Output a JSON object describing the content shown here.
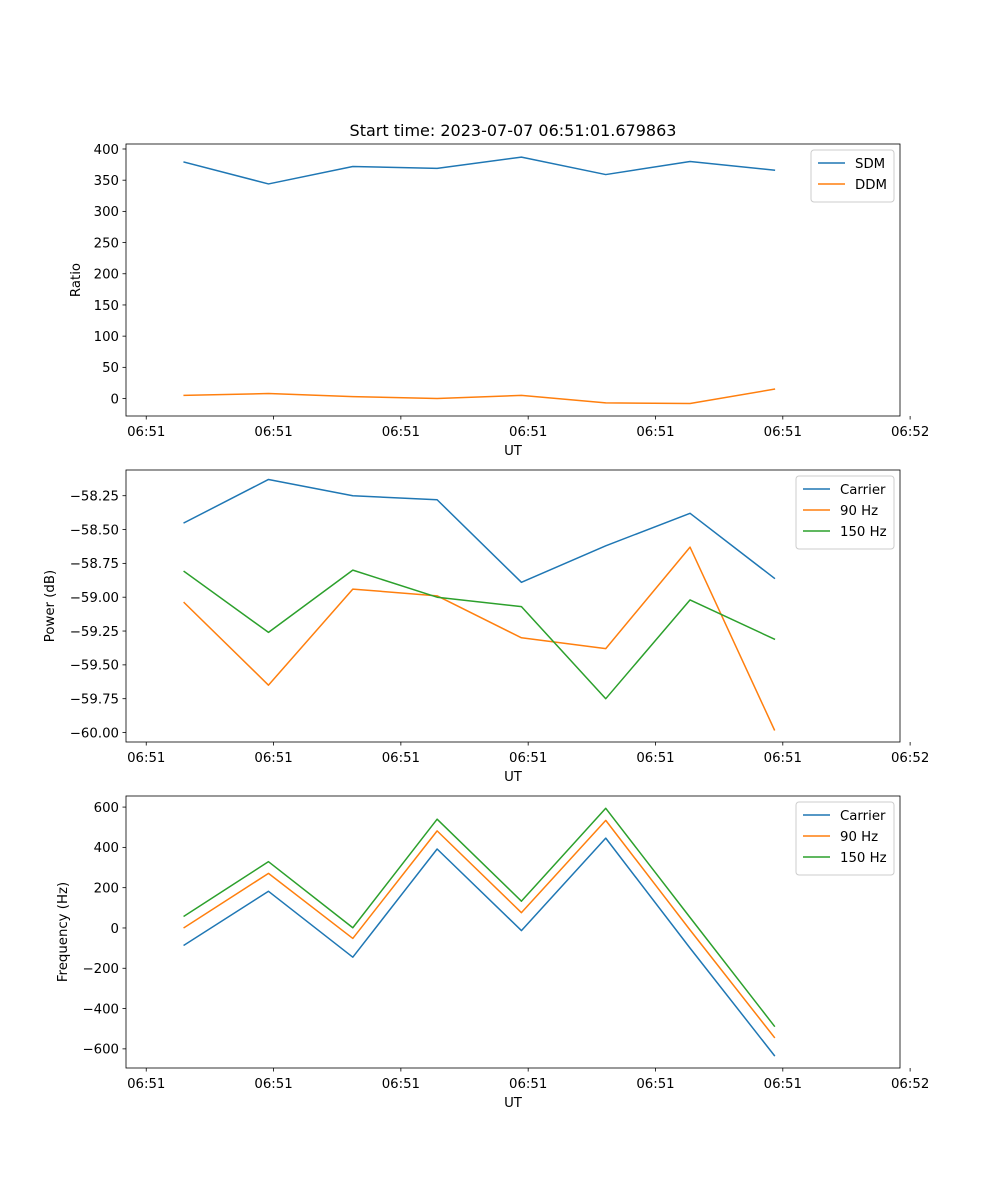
{
  "figure_title": "Start time: 2023-07-07 06:51:01.679863",
  "colors": {
    "blue": "#1f77b4",
    "orange": "#ff7f0e",
    "green": "#2ca02c"
  },
  "chart_data": [
    {
      "type": "line",
      "title": "Start time: 2023-07-07 06:51:01.679863",
      "xlabel": "UT",
      "ylabel": "Ratio",
      "x": [
        1,
        2,
        3,
        4,
        5,
        6,
        7,
        8
      ],
      "xlim": [
        0.31,
        9.49
      ],
      "x_ticks": [
        0.55,
        2.06,
        3.57,
        5.08,
        6.59,
        8.1,
        9.61
      ],
      "x_tick_labels": [
        "06:51",
        "06:51",
        "06:51",
        "06:51",
        "06:51",
        "06:51",
        "06:52"
      ],
      "ylim": [
        -28,
        408
      ],
      "y_ticks": [
        0,
        50,
        100,
        150,
        200,
        250,
        300,
        350,
        400
      ],
      "y_tick_labels": [
        "0",
        "50",
        "100",
        "150",
        "200",
        "250",
        "300",
        "350",
        "400"
      ],
      "legend_position": "top-right",
      "series": [
        {
          "name": "SDM",
          "color": "#1f77b4",
          "values": [
            379,
            344,
            372,
            369,
            387,
            359,
            380,
            366
          ]
        },
        {
          "name": "DDM",
          "color": "#ff7f0e",
          "values": [
            5,
            8,
            3,
            0,
            5,
            -7,
            -8,
            15
          ]
        }
      ]
    },
    {
      "type": "line",
      "title": "",
      "xlabel": "UT",
      "ylabel": "Power (dB)",
      "x": [
        1,
        2,
        3,
        4,
        5,
        6,
        7,
        8
      ],
      "xlim": [
        0.31,
        9.49
      ],
      "x_ticks": [
        0.55,
        2.06,
        3.57,
        5.08,
        6.59,
        8.1,
        9.61
      ],
      "x_tick_labels": [
        "06:51",
        "06:51",
        "06:51",
        "06:51",
        "06:51",
        "06:51",
        "06:52"
      ],
      "ylim": [
        -60.07,
        -58.06
      ],
      "y_ticks": [
        -60.0,
        -59.75,
        -59.5,
        -59.25,
        -59.0,
        -58.75,
        -58.5,
        -58.25
      ],
      "y_tick_labels": [
        "−60.00",
        "−59.75",
        "−59.50",
        "−59.25",
        "−59.00",
        "−58.75",
        "−58.50",
        "−58.25"
      ],
      "legend_position": "top-right",
      "series": [
        {
          "name": "Carrier",
          "color": "#1f77b4",
          "values": [
            -58.45,
            -58.13,
            -58.25,
            -58.28,
            -58.89,
            -58.62,
            -58.38,
            -58.86
          ]
        },
        {
          "name": "90 Hz",
          "color": "#ff7f0e",
          "values": [
            -59.04,
            -59.65,
            -58.94,
            -58.99,
            -59.3,
            -59.38,
            -58.63,
            -59.98
          ]
        },
        {
          "name": "150 Hz",
          "color": "#2ca02c",
          "values": [
            -58.81,
            -59.26,
            -58.8,
            -59.0,
            -59.07,
            -59.75,
            -59.02,
            -59.31
          ]
        }
      ]
    },
    {
      "type": "line",
      "title": "",
      "xlabel": "UT",
      "ylabel": "Frequency (Hz)",
      "x": [
        1,
        2,
        3,
        4,
        5,
        6,
        7,
        8
      ],
      "xlim": [
        0.31,
        9.49
      ],
      "x_ticks": [
        0.55,
        2.06,
        3.57,
        5.08,
        6.59,
        8.1,
        9.61
      ],
      "x_tick_labels": [
        "06:51",
        "06:51",
        "06:51",
        "06:51",
        "06:51",
        "06:51",
        "06:52"
      ],
      "ylim": [
        -695,
        655
      ],
      "y_ticks": [
        -600,
        -400,
        -200,
        0,
        200,
        400,
        600
      ],
      "y_tick_labels": [
        "−600",
        "−400",
        "−200",
        "0",
        "200",
        "400",
        "600"
      ],
      "legend_position": "top-right",
      "series": [
        {
          "name": "Carrier",
          "color": "#1f77b4",
          "values": [
            -85,
            182,
            -145,
            392,
            -13,
            446,
            -100,
            -633
          ]
        },
        {
          "name": "90 Hz",
          "color": "#ff7f0e",
          "values": [
            2,
            271,
            -52,
            482,
            76,
            534,
            -10,
            -543
          ]
        },
        {
          "name": "150 Hz",
          "color": "#2ca02c",
          "values": [
            59,
            329,
            1,
            540,
            133,
            594,
            52,
            -487
          ]
        }
      ]
    }
  ]
}
